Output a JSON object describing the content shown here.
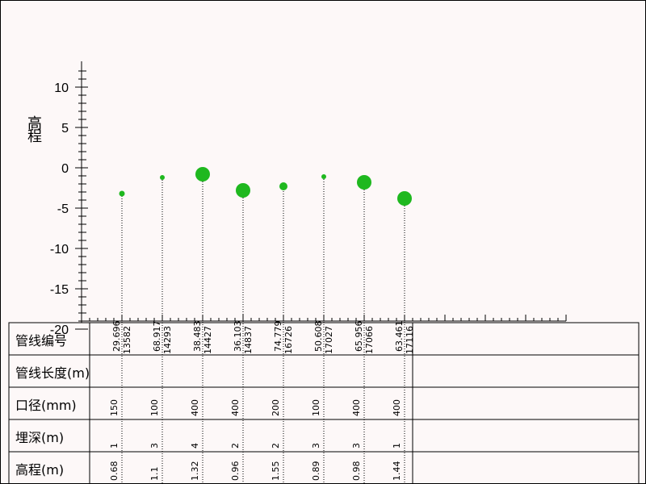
{
  "chart_data": {
    "type": "scatter",
    "ylabel": "高程",
    "yticks": [
      "10",
      "5",
      "0",
      "-5",
      "-10",
      "-15",
      "-20"
    ],
    "ylim": [
      -20,
      10
    ],
    "dot_color": "#1fb81f",
    "stem_color": "#000000",
    "points": [
      {
        "id": "13582",
        "length": "29.696",
        "diameter": "150",
        "depth": "1",
        "elevation": "0.68",
        "y": -3.2
      },
      {
        "id": "14293",
        "length": "68.917",
        "diameter": "100",
        "depth": "3",
        "elevation": "1.1",
        "y": -1.2
      },
      {
        "id": "14427",
        "length": "38.483",
        "diameter": "400",
        "depth": "4",
        "elevation": "1.32",
        "y": -0.8
      },
      {
        "id": "14837",
        "length": "36.103",
        "diameter": "400",
        "depth": "2",
        "elevation": "0.96",
        "y": -2.8
      },
      {
        "id": "16726",
        "length": "74.779",
        "diameter": "200",
        "depth": "2",
        "elevation": "1.55",
        "y": -2.3
      },
      {
        "id": "17027",
        "length": "50.608",
        "diameter": "100",
        "depth": "3",
        "elevation": "0.89",
        "y": -1.1
      },
      {
        "id": "17066",
        "length": "65.956",
        "diameter": "400",
        "depth": "3",
        "elevation": "0.98",
        "y": -1.8
      },
      {
        "id": "17116",
        "length": "63.461",
        "diameter": "400",
        "depth": "1",
        "elevation": "1.44",
        "y": -3.8
      }
    ]
  },
  "table": {
    "rows": [
      {
        "label": "管线编号",
        "field": "id"
      },
      {
        "label": "管线长度(m)",
        "field": "length"
      },
      {
        "label": "口径(mm)",
        "field": "diameter"
      },
      {
        "label": "埋深(m)",
        "field": "depth"
      },
      {
        "label": "高程(m)",
        "field": "elevation"
      }
    ]
  }
}
